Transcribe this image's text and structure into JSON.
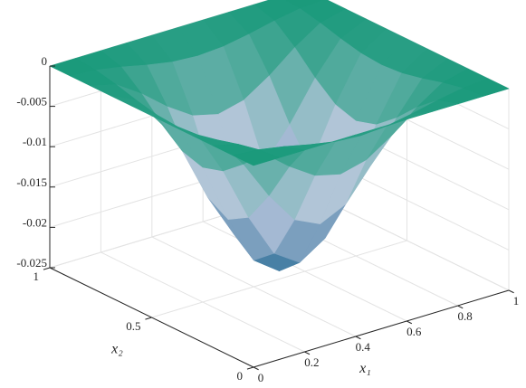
{
  "chart_data": {
    "type": "surface",
    "x": [
      0,
      0.1,
      0.2,
      0.3,
      0.4,
      0.5,
      0.6,
      0.7,
      0.8,
      0.9,
      1
    ],
    "y": [
      0,
      0.1,
      0.2,
      0.3,
      0.4,
      0.5,
      0.6,
      0.7,
      0.8,
      0.9,
      1
    ],
    "z": [
      [
        0,
        0,
        0,
        0,
        0,
        0,
        0,
        0,
        0,
        0,
        0
      ],
      [
        0,
        -0.00022,
        -0.00079,
        -0.0015,
        -0.00207,
        -0.00229,
        -0.00207,
        -0.0015,
        -0.00079,
        -0.00022,
        0
      ],
      [
        0,
        -0.00079,
        -0.00287,
        -0.00543,
        -0.0075,
        -0.00829,
        -0.0075,
        -0.00543,
        -0.00287,
        -0.00079,
        0
      ],
      [
        0,
        -0.0015,
        -0.00543,
        -0.01028,
        -0.01421,
        -0.01571,
        -0.01421,
        -0.01028,
        -0.00543,
        -0.0015,
        0
      ],
      [
        0,
        -0.00207,
        -0.0075,
        -0.01421,
        -0.01963,
        -0.02171,
        -0.01963,
        -0.01421,
        -0.0075,
        -0.00207,
        0
      ],
      [
        0,
        -0.00229,
        -0.00829,
        -0.01571,
        -0.02171,
        -0.024,
        -0.02171,
        -0.01571,
        -0.00829,
        -0.00229,
        0
      ],
      [
        0,
        -0.00207,
        -0.0075,
        -0.01421,
        -0.01963,
        -0.02171,
        -0.01963,
        -0.01421,
        -0.0075,
        -0.00207,
        0
      ],
      [
        0,
        -0.0015,
        -0.00543,
        -0.01028,
        -0.01421,
        -0.01571,
        -0.01421,
        -0.01028,
        -0.00543,
        -0.0015,
        0
      ],
      [
        0,
        -0.00079,
        -0.00287,
        -0.00543,
        -0.0075,
        -0.00829,
        -0.0075,
        -0.00543,
        -0.00287,
        -0.00079,
        0
      ],
      [
        0,
        -0.00022,
        -0.00079,
        -0.0015,
        -0.00207,
        -0.00229,
        -0.00207,
        -0.0015,
        -0.00079,
        -0.00022,
        0
      ],
      [
        0,
        0,
        0,
        0,
        0,
        0,
        0,
        0,
        0,
        0,
        0
      ]
    ],
    "xlabel": "x₁",
    "ylabel": "x₂",
    "xlim": [
      0,
      1
    ],
    "ylim": [
      0,
      1
    ],
    "zlim": [
      -0.025,
      0
    ],
    "xticks": [
      0,
      0.2,
      0.4,
      0.6,
      0.8,
      1
    ],
    "yticks": [
      0,
      0.5,
      1
    ],
    "zticks": [
      -0.025,
      -0.02,
      -0.015,
      -0.01,
      -0.005,
      0
    ],
    "grid": true,
    "colormap": [
      "#1f6690",
      "#bfc9e0",
      "#1a9a7b"
    ]
  }
}
